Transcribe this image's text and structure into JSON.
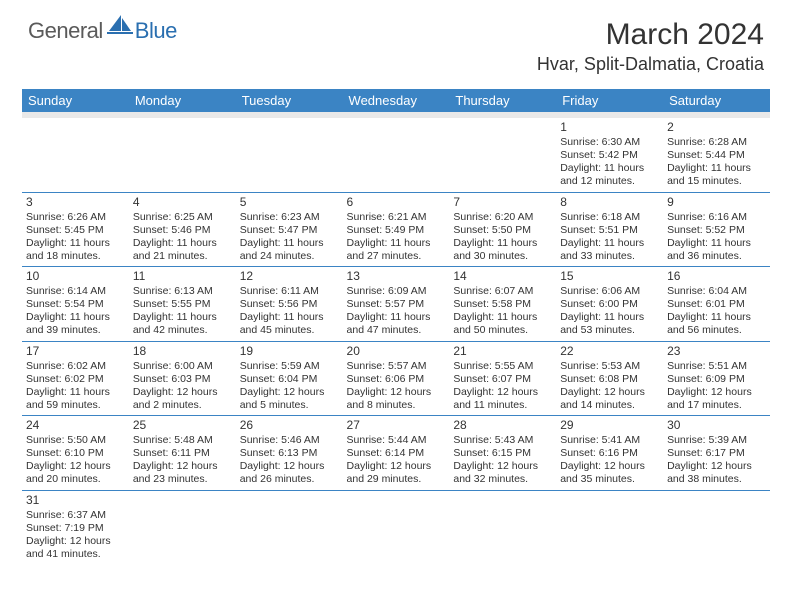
{
  "logo": {
    "text1": "General",
    "text2": "Blue"
  },
  "title": "March 2024",
  "location": "Hvar, Split-Dalmatia, Croatia",
  "colors": {
    "header_bg": "#3b84c4",
    "header_text": "#ffffff",
    "cell_border": "#3b84c4",
    "blank_row_bg": "#e9e9e9",
    "text": "#333333",
    "logo_gray": "#5a5a5a",
    "logo_blue": "#2a6fb0"
  },
  "weekdays": [
    "Sunday",
    "Monday",
    "Tuesday",
    "Wednesday",
    "Thursday",
    "Friday",
    "Saturday"
  ],
  "weeks": [
    [
      null,
      null,
      null,
      null,
      null,
      {
        "d": "1",
        "sr": "Sunrise: 6:30 AM",
        "ss": "Sunset: 5:42 PM",
        "dl1": "Daylight: 11 hours",
        "dl2": "and 12 minutes."
      },
      {
        "d": "2",
        "sr": "Sunrise: 6:28 AM",
        "ss": "Sunset: 5:44 PM",
        "dl1": "Daylight: 11 hours",
        "dl2": "and 15 minutes."
      }
    ],
    [
      {
        "d": "3",
        "sr": "Sunrise: 6:26 AM",
        "ss": "Sunset: 5:45 PM",
        "dl1": "Daylight: 11 hours",
        "dl2": "and 18 minutes."
      },
      {
        "d": "4",
        "sr": "Sunrise: 6:25 AM",
        "ss": "Sunset: 5:46 PM",
        "dl1": "Daylight: 11 hours",
        "dl2": "and 21 minutes."
      },
      {
        "d": "5",
        "sr": "Sunrise: 6:23 AM",
        "ss": "Sunset: 5:47 PM",
        "dl1": "Daylight: 11 hours",
        "dl2": "and 24 minutes."
      },
      {
        "d": "6",
        "sr": "Sunrise: 6:21 AM",
        "ss": "Sunset: 5:49 PM",
        "dl1": "Daylight: 11 hours",
        "dl2": "and 27 minutes."
      },
      {
        "d": "7",
        "sr": "Sunrise: 6:20 AM",
        "ss": "Sunset: 5:50 PM",
        "dl1": "Daylight: 11 hours",
        "dl2": "and 30 minutes."
      },
      {
        "d": "8",
        "sr": "Sunrise: 6:18 AM",
        "ss": "Sunset: 5:51 PM",
        "dl1": "Daylight: 11 hours",
        "dl2": "and 33 minutes."
      },
      {
        "d": "9",
        "sr": "Sunrise: 6:16 AM",
        "ss": "Sunset: 5:52 PM",
        "dl1": "Daylight: 11 hours",
        "dl2": "and 36 minutes."
      }
    ],
    [
      {
        "d": "10",
        "sr": "Sunrise: 6:14 AM",
        "ss": "Sunset: 5:54 PM",
        "dl1": "Daylight: 11 hours",
        "dl2": "and 39 minutes."
      },
      {
        "d": "11",
        "sr": "Sunrise: 6:13 AM",
        "ss": "Sunset: 5:55 PM",
        "dl1": "Daylight: 11 hours",
        "dl2": "and 42 minutes."
      },
      {
        "d": "12",
        "sr": "Sunrise: 6:11 AM",
        "ss": "Sunset: 5:56 PM",
        "dl1": "Daylight: 11 hours",
        "dl2": "and 45 minutes."
      },
      {
        "d": "13",
        "sr": "Sunrise: 6:09 AM",
        "ss": "Sunset: 5:57 PM",
        "dl1": "Daylight: 11 hours",
        "dl2": "and 47 minutes."
      },
      {
        "d": "14",
        "sr": "Sunrise: 6:07 AM",
        "ss": "Sunset: 5:58 PM",
        "dl1": "Daylight: 11 hours",
        "dl2": "and 50 minutes."
      },
      {
        "d": "15",
        "sr": "Sunrise: 6:06 AM",
        "ss": "Sunset: 6:00 PM",
        "dl1": "Daylight: 11 hours",
        "dl2": "and 53 minutes."
      },
      {
        "d": "16",
        "sr": "Sunrise: 6:04 AM",
        "ss": "Sunset: 6:01 PM",
        "dl1": "Daylight: 11 hours",
        "dl2": "and 56 minutes."
      }
    ],
    [
      {
        "d": "17",
        "sr": "Sunrise: 6:02 AM",
        "ss": "Sunset: 6:02 PM",
        "dl1": "Daylight: 11 hours",
        "dl2": "and 59 minutes."
      },
      {
        "d": "18",
        "sr": "Sunrise: 6:00 AM",
        "ss": "Sunset: 6:03 PM",
        "dl1": "Daylight: 12 hours",
        "dl2": "and 2 minutes."
      },
      {
        "d": "19",
        "sr": "Sunrise: 5:59 AM",
        "ss": "Sunset: 6:04 PM",
        "dl1": "Daylight: 12 hours",
        "dl2": "and 5 minutes."
      },
      {
        "d": "20",
        "sr": "Sunrise: 5:57 AM",
        "ss": "Sunset: 6:06 PM",
        "dl1": "Daylight: 12 hours",
        "dl2": "and 8 minutes."
      },
      {
        "d": "21",
        "sr": "Sunrise: 5:55 AM",
        "ss": "Sunset: 6:07 PM",
        "dl1": "Daylight: 12 hours",
        "dl2": "and 11 minutes."
      },
      {
        "d": "22",
        "sr": "Sunrise: 5:53 AM",
        "ss": "Sunset: 6:08 PM",
        "dl1": "Daylight: 12 hours",
        "dl2": "and 14 minutes."
      },
      {
        "d": "23",
        "sr": "Sunrise: 5:51 AM",
        "ss": "Sunset: 6:09 PM",
        "dl1": "Daylight: 12 hours",
        "dl2": "and 17 minutes."
      }
    ],
    [
      {
        "d": "24",
        "sr": "Sunrise: 5:50 AM",
        "ss": "Sunset: 6:10 PM",
        "dl1": "Daylight: 12 hours",
        "dl2": "and 20 minutes."
      },
      {
        "d": "25",
        "sr": "Sunrise: 5:48 AM",
        "ss": "Sunset: 6:11 PM",
        "dl1": "Daylight: 12 hours",
        "dl2": "and 23 minutes."
      },
      {
        "d": "26",
        "sr": "Sunrise: 5:46 AM",
        "ss": "Sunset: 6:13 PM",
        "dl1": "Daylight: 12 hours",
        "dl2": "and 26 minutes."
      },
      {
        "d": "27",
        "sr": "Sunrise: 5:44 AM",
        "ss": "Sunset: 6:14 PM",
        "dl1": "Daylight: 12 hours",
        "dl2": "and 29 minutes."
      },
      {
        "d": "28",
        "sr": "Sunrise: 5:43 AM",
        "ss": "Sunset: 6:15 PM",
        "dl1": "Daylight: 12 hours",
        "dl2": "and 32 minutes."
      },
      {
        "d": "29",
        "sr": "Sunrise: 5:41 AM",
        "ss": "Sunset: 6:16 PM",
        "dl1": "Daylight: 12 hours",
        "dl2": "and 35 minutes."
      },
      {
        "d": "30",
        "sr": "Sunrise: 5:39 AM",
        "ss": "Sunset: 6:17 PM",
        "dl1": "Daylight: 12 hours",
        "dl2": "and 38 minutes."
      }
    ],
    [
      {
        "d": "31",
        "sr": "Sunrise: 6:37 AM",
        "ss": "Sunset: 7:19 PM",
        "dl1": "Daylight: 12 hours",
        "dl2": "and 41 minutes."
      },
      null,
      null,
      null,
      null,
      null,
      null
    ]
  ]
}
